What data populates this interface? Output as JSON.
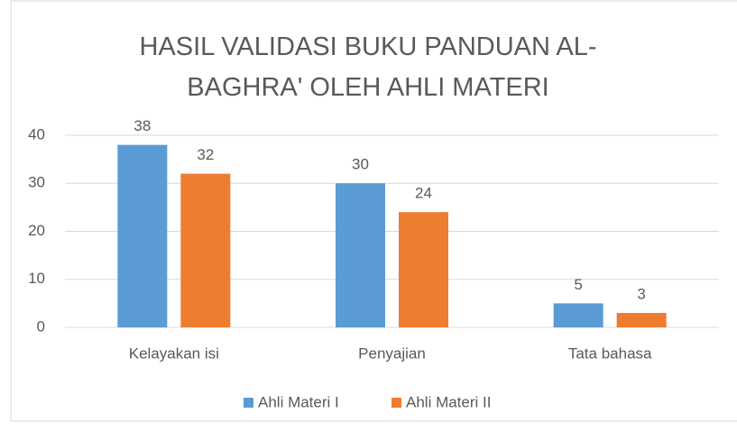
{
  "chart_data": {
    "type": "bar",
    "title": "HASIL VALIDASI BUKU PANDUAN AL-BAGHRA' OLEH AHLI MATERI",
    "categories": [
      "Kelayakan isi",
      "Penyajian",
      "Tata bahasa"
    ],
    "series": [
      {
        "name": "Ahli Materi I",
        "color": "#5b9bd5",
        "values": [
          38,
          30,
          5
        ]
      },
      {
        "name": "Ahli Materi II",
        "color": "#ed7d31",
        "values": [
          32,
          24,
          3
        ]
      }
    ],
    "ylim": [
      0,
      40
    ],
    "yticks": [
      0,
      10,
      20,
      30,
      40
    ],
    "grid": true,
    "legend": "bottom"
  }
}
